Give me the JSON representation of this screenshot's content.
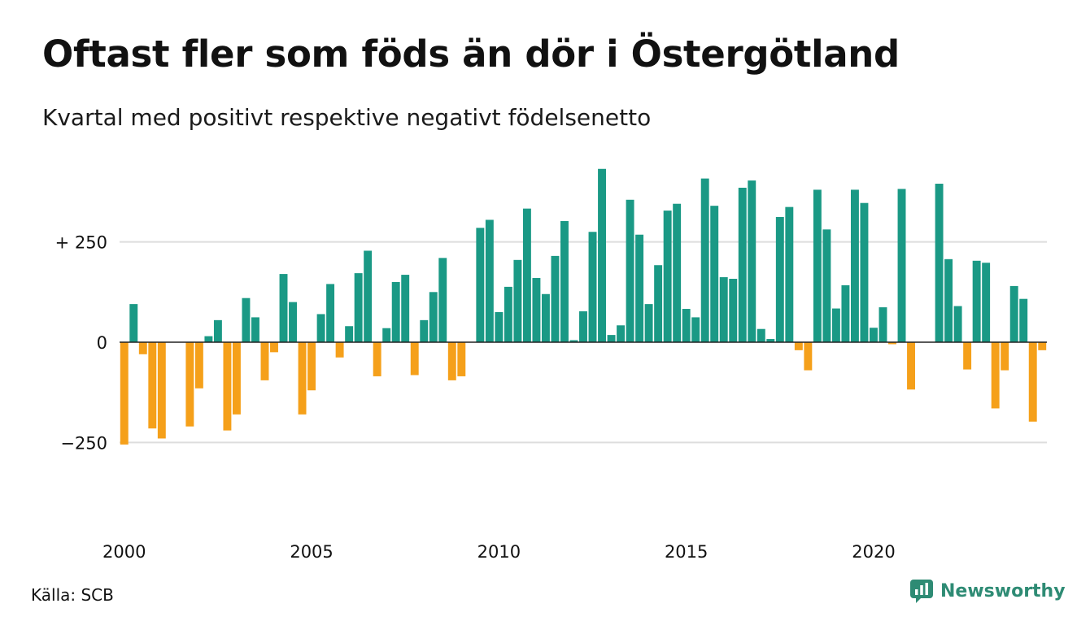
{
  "header": {
    "title": "Oftast fler som föds än dör i Östergötland",
    "subtitle": "Kvartal med positivt respektive negativt födelsenetto"
  },
  "footer": {
    "source": "Källa: SCB",
    "brand": "Newsworthy",
    "brand_icon": "newsworthy-logo-icon"
  },
  "colors": {
    "positive": "#1a9985",
    "negative": "#f5a01a",
    "grid": "#dddddd",
    "zero_line": "#222222",
    "brand": "#2e8b74"
  },
  "chart_data": {
    "type": "bar",
    "title": "Oftast fler som föds än dör i Östergötland",
    "subtitle": "Kvartal med positivt respektive negativt födelsenetto",
    "xlabel": "",
    "ylabel": "",
    "x_start": 2000,
    "x_ticks": [
      {
        "value": 2000,
        "label": "2000"
      },
      {
        "value": 2005,
        "label": "2005"
      },
      {
        "value": 2010,
        "label": "2010"
      },
      {
        "value": 2015,
        "label": "2015"
      },
      {
        "value": 2020,
        "label": "2020"
      }
    ],
    "y_ticks": [
      {
        "value": 250,
        "label": "+ 250"
      },
      {
        "value": 0,
        "label": "0"
      },
      {
        "value": -250,
        "label": "−250"
      }
    ],
    "ylim": [
      -440,
      440
    ],
    "grid": true,
    "values": [
      -255,
      95,
      -30,
      -215,
      -240,
      0,
      0,
      -210,
      -115,
      15,
      55,
      -220,
      -180,
      110,
      62,
      -95,
      -25,
      170,
      100,
      -180,
      -120,
      70,
      145,
      -38,
      40,
      172,
      228,
      -85,
      35,
      150,
      168,
      -82,
      55,
      125,
      210,
      -95,
      -85,
      0,
      285,
      305,
      75,
      138,
      205,
      333,
      160,
      120,
      215,
      302,
      5,
      77,
      275,
      432,
      18,
      42,
      355,
      268,
      95,
      192,
      328,
      345,
      83,
      62,
      408,
      340,
      162,
      158,
      385,
      403,
      33,
      8,
      312,
      337,
      -20,
      -70,
      380,
      281,
      84,
      142,
      380,
      347,
      36,
      87,
      -5,
      382,
      -118,
      0,
      0,
      395,
      207,
      90,
      -68,
      203,
      198,
      -165,
      -70,
      140,
      108,
      -198,
      -20
    ]
  }
}
